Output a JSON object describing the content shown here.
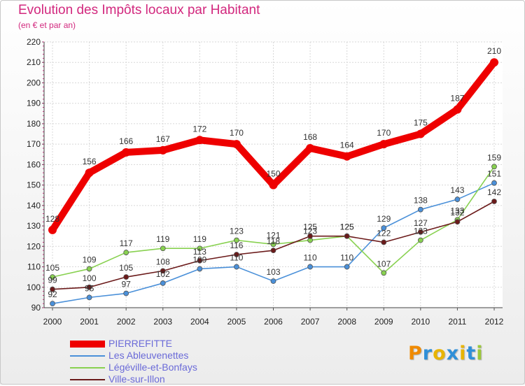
{
  "title": "Evolution des Impôts locaux par Habitant",
  "subtitle": "(en € et par an)",
  "logo": {
    "text": "Proxiti",
    "colors": [
      "#f08a00",
      "#2f8fd8",
      "#e8b400",
      "#2f8fd8",
      "#e8b400",
      "#2f8fd8",
      "#9cc83a"
    ]
  },
  "chart_data": {
    "type": "line",
    "title": "Evolution des Impôts locaux par Habitant",
    "subtitle": "(en € et par an)",
    "xlabel": "",
    "ylabel": "",
    "categories": [
      "2000",
      "2001",
      "2002",
      "2003",
      "2004",
      "2005",
      "2006",
      "2007",
      "2008",
      "2009",
      "2010",
      "2011",
      "2012"
    ],
    "ylim": [
      90,
      220
    ],
    "yticks": [
      90,
      100,
      110,
      120,
      130,
      140,
      150,
      160,
      170,
      180,
      190,
      200,
      210,
      220
    ],
    "grid": true,
    "legend_position": "bottom-left",
    "series": [
      {
        "name": "PIERREFITTE",
        "color": "#ee0000",
        "values": [
          128,
          156,
          166,
          167,
          172,
          170,
          150,
          168,
          164,
          170,
          175,
          187,
          210
        ],
        "labels": [
          "128",
          "156",
          "166",
          "167",
          "172",
          "170",
          "150",
          "168",
          "164",
          "170",
          "175",
          "187",
          "210"
        ]
      },
      {
        "name": "Les Ableuvenettes",
        "color": "#4a90d9",
        "values": [
          92,
          95,
          97,
          102,
          109,
          110,
          103,
          110,
          110,
          129,
          138,
          143,
          151
        ],
        "labels": [
          "92",
          "95",
          "97",
          "102",
          "109",
          "110",
          "103",
          "110",
          "110",
          "129",
          "138",
          "143",
          "151"
        ]
      },
      {
        "name": "Légéville-et-Bonfays",
        "color": "#88d150",
        "values": [
          105,
          109,
          117,
          119,
          119,
          123,
          121,
          123,
          125,
          107,
          123,
          133,
          159
        ],
        "labels": [
          "105",
          "109",
          "117",
          "119",
          "119",
          "123",
          "121",
          "123",
          "125",
          "107",
          "123",
          "133",
          "159"
        ]
      },
      {
        "name": "Ville-sur-Illon",
        "color": "#6b1a1a",
        "values": [
          99,
          100,
          105,
          108,
          113,
          116,
          118,
          125,
          125,
          122,
          127,
          132,
          142
        ],
        "labels": [
          "99",
          "100",
          "105",
          "108",
          "113",
          "116",
          "118",
          "125",
          "125",
          "122",
          "127",
          "132",
          "142"
        ]
      }
    ]
  }
}
